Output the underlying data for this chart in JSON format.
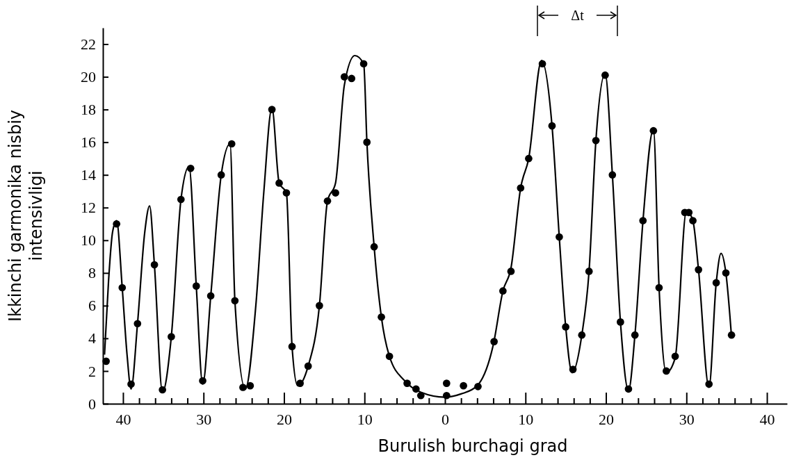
{
  "chart_data": {
    "type": "scatter",
    "xlabel": "Burulish burchagi grad",
    "ylabel": "Ikkinchi garmonika nisbiy\nintensivligi",
    "xlim": [
      -42.5,
      42.5
    ],
    "ylim": [
      0,
      23
    ],
    "xticks": [
      {
        "value": -40,
        "label": "40"
      },
      {
        "value": -38,
        "label": null
      },
      {
        "value": -36,
        "label": null
      },
      {
        "value": -34,
        "label": null
      },
      {
        "value": -32,
        "label": null
      },
      {
        "value": -30,
        "label": "30"
      },
      {
        "value": -28,
        "label": null
      },
      {
        "value": -26,
        "label": null
      },
      {
        "value": -24,
        "label": null
      },
      {
        "value": -22,
        "label": null
      },
      {
        "value": -20,
        "label": "20"
      },
      {
        "value": -18,
        "label": null
      },
      {
        "value": -16,
        "label": null
      },
      {
        "value": -14,
        "label": null
      },
      {
        "value": -12,
        "label": null
      },
      {
        "value": -10,
        "label": "10"
      },
      {
        "value": -8,
        "label": null
      },
      {
        "value": -6,
        "label": null
      },
      {
        "value": -4,
        "label": null
      },
      {
        "value": -2,
        "label": null
      },
      0,
      {
        "value": 2,
        "label": null
      },
      {
        "value": 4,
        "label": null
      },
      {
        "value": 6,
        "label": null
      },
      {
        "value": 8,
        "label": null
      },
      10,
      {
        "value": 12,
        "label": null
      },
      {
        "value": 14,
        "label": null
      },
      {
        "value": 16,
        "label": null
      },
      {
        "value": 18,
        "label": null
      },
      20,
      {
        "value": 22,
        "label": null
      },
      {
        "value": 24,
        "label": null
      },
      {
        "value": 26,
        "label": null
      },
      {
        "value": 28,
        "label": null
      },
      30,
      {
        "value": 32,
        "label": null
      },
      {
        "value": 34,
        "label": null
      },
      {
        "value": 36,
        "label": null
      },
      {
        "value": 38,
        "label": null
      },
      40
    ],
    "yticks": [
      0,
      2,
      4,
      6,
      8,
      10,
      12,
      14,
      16,
      18,
      20,
      22
    ],
    "grid": false,
    "annotations": [
      "Δt"
    ],
    "series": [
      {
        "type": "line",
        "color": "#000000",
        "marker": "none",
        "line_style": "solid",
        "x": [
          -42.3,
          -41.8,
          -41.3,
          -40.8,
          -40.1,
          -39.5,
          -39.0,
          -38.2,
          -37.3,
          -36.7,
          -36.1,
          -35.1,
          -34.0,
          -32.8,
          -31.8,
          -30.9,
          -30.1,
          -29.1,
          -27.8,
          -26.7,
          -26.1,
          -24.8,
          -23.5,
          -22.5,
          -21.5,
          -20.6,
          -19.7,
          -19.0,
          -18.3,
          -17.0,
          -15.6,
          -14.6,
          -13.6,
          -12.5,
          -11.2,
          -10.1,
          -9.7,
          -8.8,
          -7.9,
          -6.9,
          -5.0,
          -3.0,
          0,
          2.0,
          4.0,
          6.0,
          7.2,
          8.2,
          9.4,
          10.4,
          12.0,
          13.3,
          14.2,
          15.0,
          15.8,
          17.0,
          17.9,
          18.75,
          19.9,
          20.8,
          21.8,
          22.8,
          23.6,
          24.6,
          25.9,
          26.6,
          27.5,
          28.6,
          30.0,
          30.8,
          31.5,
          32.8,
          33.7,
          34.3,
          34.9,
          35.6
        ],
        "values": [
          3.0,
          7.5,
          10.5,
          11.2,
          7.1,
          3.0,
          0.9,
          4.9,
          10.5,
          12.1,
          8.5,
          0.7,
          4.1,
          12.5,
          14.5,
          7.2,
          1.2,
          6.6,
          14.0,
          15.9,
          6.3,
          0.9,
          6.0,
          13.0,
          18.1,
          13.5,
          12.9,
          3.5,
          1.1,
          2.3,
          6.0,
          12.4,
          13.5,
          19.5,
          21.3,
          20.8,
          16.0,
          9.6,
          5.3,
          2.9,
          1.4,
          0.7,
          0.4,
          0.6,
          1.1,
          3.6,
          6.9,
          8.3,
          13.2,
          15.0,
          21.0,
          17.0,
          10.2,
          4.7,
          1.9,
          4.2,
          8.1,
          16.1,
          20.2,
          14.0,
          5.0,
          0.8,
          4.2,
          11.2,
          16.8,
          7.1,
          1.9,
          2.8,
          11.8,
          11.2,
          8.2,
          1.0,
          7.4,
          9.2,
          8.0,
          4.1
        ]
      },
      {
        "color": "#000000",
        "marker": "circle",
        "x": [
          -42.1,
          -40.8,
          -40.1,
          -39.0,
          -38.2,
          -36.1,
          -35.1,
          -34.0,
          -32.8,
          -31.6,
          -30.9,
          -30.1,
          -29.1,
          -27.8,
          -26.5,
          -26.1,
          -25.1,
          -24.2,
          -21.5,
          -20.6,
          -19.7,
          -19.0,
          -18.0,
          -17.0,
          -15.6,
          -14.6,
          -13.6,
          -12.5,
          -11.6,
          -10.1,
          -9.7,
          -8.8,
          -7.9,
          -6.9,
          -4.7,
          -3.6,
          -3.0,
          0.2,
          0.2,
          2.3,
          4.1,
          6.1,
          7.2,
          8.2,
          9.4,
          10.4,
          12.1,
          13.3,
          14.2,
          15.0,
          15.9,
          17.0,
          17.9,
          18.75,
          19.9,
          20.8,
          21.8,
          22.8,
          23.6,
          24.6,
          25.9,
          26.6,
          27.5,
          28.6,
          29.8,
          30.3,
          30.8,
          31.5,
          32.8,
          33.7,
          34.9,
          35.6
        ],
        "values": [
          2.6,
          11.0,
          7.1,
          1.2,
          4.9,
          8.5,
          0.85,
          4.1,
          12.5,
          14.4,
          7.2,
          1.4,
          6.6,
          14.0,
          15.9,
          6.3,
          1.0,
          1.1,
          18.0,
          13.5,
          12.9,
          3.5,
          1.25,
          2.3,
          6.0,
          12.4,
          12.9,
          20.0,
          19.9,
          20.8,
          16.0,
          9.6,
          5.3,
          2.9,
          1.25,
          0.9,
          0.5,
          1.25,
          0.5,
          1.1,
          1.05,
          3.8,
          6.9,
          8.1,
          13.2,
          15.0,
          20.8,
          17.0,
          10.2,
          4.7,
          2.1,
          4.2,
          8.1,
          16.1,
          20.1,
          14.0,
          5.0,
          0.9,
          4.2,
          11.2,
          16.7,
          7.1,
          2.0,
          2.9,
          11.7,
          11.7,
          11.2,
          8.2,
          1.2,
          7.4,
          8.0,
          4.2
        ]
      }
    ]
  }
}
